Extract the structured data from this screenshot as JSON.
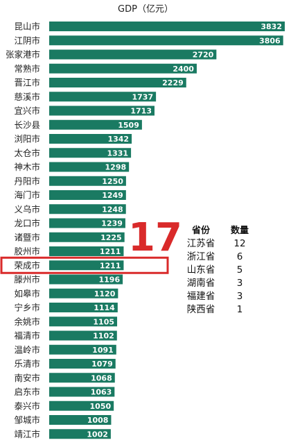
{
  "chart_data": {
    "type": "bar",
    "orientation": "horizontal",
    "title": "GDP（亿元）",
    "categories": [
      "昆山市",
      "江阴市",
      "张家港市",
      "常熟市",
      "晋江市",
      "慈溪市",
      "宜兴市",
      "长沙县",
      "浏阳市",
      "太仓市",
      "神木市",
      "丹阳市",
      "海门市",
      "义乌市",
      "龙口市",
      "诸暨市",
      "胶州市",
      "荣成市",
      "滕州市",
      "如皋市",
      "宁乡市",
      "余姚市",
      "福清市",
      "温岭市",
      "乐清市",
      "南安市",
      "启东市",
      "泰兴市",
      "邹城市",
      "靖江市"
    ],
    "values": [
      3832,
      3806,
      2720,
      2400,
      2229,
      1737,
      1713,
      1509,
      1342,
      1331,
      1298,
      1250,
      1249,
      1248,
      1239,
      1225,
      1211,
      1211,
      1196,
      1120,
      1114,
      1105,
      1102,
      1091,
      1079,
      1068,
      1063,
      1050,
      1008,
      1002
    ],
    "bar_color": "#1a7a62",
    "highlight": {
      "category": "荣成市",
      "color": "#d92a2a"
    },
    "xlim": [
      0,
      3832
    ]
  },
  "annotation": {
    "rank": "17",
    "table": {
      "headers": [
        "省份",
        "数量"
      ],
      "rows": [
        [
          "江苏省",
          "12"
        ],
        [
          "浙江省",
          "6"
        ],
        [
          "山东省",
          "5"
        ],
        [
          "湖南省",
          "3"
        ],
        [
          "福建省",
          "3"
        ],
        [
          "陕西省",
          "1"
        ]
      ]
    }
  }
}
